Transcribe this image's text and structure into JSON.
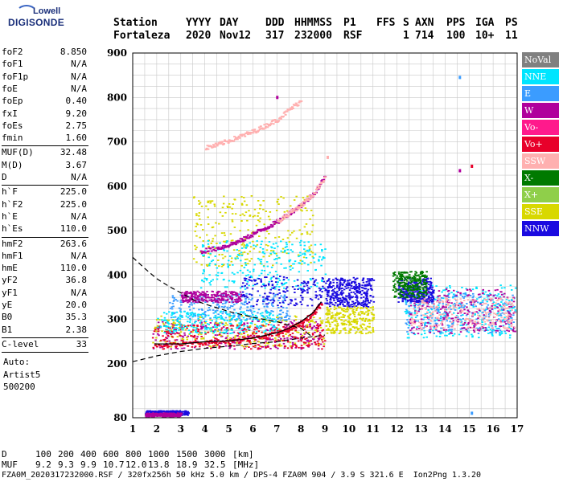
{
  "logo": {
    "line1": "Lowell",
    "line2": "DIGISONDE"
  },
  "header": {
    "labels": [
      "Station",
      "YYYY",
      "DAY",
      "DDD",
      "HHMMSS",
      "P1",
      "FFS",
      "S",
      "AXN",
      "PPS",
      "IGA",
      "PS"
    ],
    "values": [
      "Fortaleza",
      "2020",
      "Nov12",
      "317",
      "232000",
      "RSF",
      "",
      "1",
      "714",
      "100",
      "10+",
      "11"
    ]
  },
  "params_a": [
    {
      "k": "foF2",
      "v": "8.850"
    },
    {
      "k": "foF1",
      "v": "N/A"
    },
    {
      "k": "foF1p",
      "v": "N/A"
    },
    {
      "k": "foE",
      "v": "N/A"
    },
    {
      "k": "foEp",
      "v": "0.40"
    },
    {
      "k": "fxI",
      "v": "9.20"
    },
    {
      "k": "foEs",
      "v": "2.75"
    },
    {
      "k": "fmin",
      "v": "1.60"
    }
  ],
  "params_b": [
    {
      "k": "MUF(D)",
      "v": "32.48"
    },
    {
      "k": "M(D)",
      "v": "3.67"
    },
    {
      "k": "D",
      "v": "N/A"
    }
  ],
  "params_c": [
    {
      "k": "h`F",
      "v": "225.0"
    },
    {
      "k": "h`F2",
      "v": "225.0"
    },
    {
      "k": "h`E",
      "v": "N/A"
    },
    {
      "k": "h`Es",
      "v": "110.0"
    }
  ],
  "params_d": [
    {
      "k": "hmF2",
      "v": "263.6"
    },
    {
      "k": "hmF1",
      "v": "N/A"
    },
    {
      "k": "hmE",
      "v": "110.0"
    },
    {
      "k": "yF2",
      "v": "36.8"
    },
    {
      "k": "yF1",
      "v": "N/A"
    },
    {
      "k": "yE",
      "v": "20.0"
    },
    {
      "k": "B0",
      "v": "35.3"
    },
    {
      "k": "B1",
      "v": "2.38"
    }
  ],
  "clevel": {
    "k": "C-level",
    "v": "33"
  },
  "auto": [
    "Auto:",
    "Artist5",
    "500200"
  ],
  "legend": [
    {
      "label": "NoVal",
      "color": "#808080"
    },
    {
      "label": "NNE",
      "color": "#00e5ff"
    },
    {
      "label": "E",
      "color": "#3b9cff"
    },
    {
      "label": "W",
      "color": "#b0009c"
    },
    {
      "label": "Vo-",
      "color": "#ff1a8c"
    },
    {
      "label": "Vo+",
      "color": "#e8002a"
    },
    {
      "label": "SSW",
      "color": "#ffb0b0"
    },
    {
      "label": "X-",
      "color": "#007a00"
    },
    {
      "label": "X+",
      "color": "#8fcf4a"
    },
    {
      "label": "SSE",
      "color": "#d8d800"
    },
    {
      "label": "NNW",
      "color": "#1a0ae0"
    }
  ],
  "bottom": {
    "d_label": "D",
    "d_values": [
      "100",
      "200",
      "400",
      "600",
      "800",
      "1000",
      "1500",
      "3000",
      "[km]"
    ],
    "muf_label": "MUF",
    "muf_values": [
      "9.2",
      "9.3",
      "9.9",
      "10.7",
      "12.0",
      "13.8",
      "18.9",
      "32.5",
      "[MHz]"
    ],
    "footer": "FZA0M_2020317232000.RSF / 320fx256h 50 kHz 5.0 km / DPS-4 FZA0M 904 / 3.9 S 321.6 E  Ion2Png 1.3.20"
  },
  "chart_data": {
    "type": "scatter",
    "title": "",
    "xlabel": "",
    "ylabel": "",
    "xlim": [
      1,
      17
    ],
    "ylim": [
      80,
      900
    ],
    "x_ticks": [
      1,
      2,
      3,
      4,
      5,
      6,
      7,
      8,
      9,
      10,
      11,
      12,
      13,
      14,
      15,
      16,
      17
    ],
    "y_ticks": [
      80,
      200,
      300,
      400,
      500,
      600,
      700,
      800,
      900
    ],
    "grid": true,
    "profile_curve": [
      {
        "x": 1.0,
        "y": 440
      },
      {
        "x": 1.5,
        "y": 415
      },
      {
        "x": 2.0,
        "y": 392
      },
      {
        "x": 2.5,
        "y": 375
      },
      {
        "x": 3.0,
        "y": 360
      },
      {
        "x": 3.5,
        "y": 345
      },
      {
        "x": 4.0,
        "y": 335
      },
      {
        "x": 5.0,
        "y": 318
      },
      {
        "x": 6.0,
        "y": 305
      },
      {
        "x": 7.0,
        "y": 295
      },
      {
        "x": 8.0,
        "y": 280
      },
      {
        "x": 8.5,
        "y": 260
      }
    ],
    "lower_curve": [
      {
        "x": 1.0,
        "y": 205
      },
      {
        "x": 2.0,
        "y": 218
      },
      {
        "x": 3.0,
        "y": 228
      },
      {
        "x": 4.0,
        "y": 235
      },
      {
        "x": 5.0,
        "y": 240
      },
      {
        "x": 6.0,
        "y": 246
      },
      {
        "x": 7.0,
        "y": 250
      },
      {
        "x": 8.0,
        "y": 258
      },
      {
        "x": 9.0,
        "y": 265
      }
    ],
    "trace_o": [
      {
        "x": 1.9,
        "y": 245
      },
      {
        "x": 3.0,
        "y": 245
      },
      {
        "x": 4.0,
        "y": 250
      },
      {
        "x": 5.0,
        "y": 252
      },
      {
        "x": 6.0,
        "y": 258
      },
      {
        "x": 7.0,
        "y": 270
      },
      {
        "x": 7.5,
        "y": 280
      },
      {
        "x": 8.0,
        "y": 295
      },
      {
        "x": 8.5,
        "y": 315
      },
      {
        "x": 8.85,
        "y": 340
      }
    ],
    "echo_clusters": [
      {
        "name": "Es-trace",
        "color": "#1a0ae0",
        "x": [
          1.5,
          3.3
        ],
        "y": [
          87,
          97
        ]
      },
      {
        "name": "Es-trace-2",
        "color": "#b0009c",
        "x": [
          1.5,
          3.0
        ],
        "y": [
          84,
          92
        ]
      },
      {
        "name": "F-low-W",
        "color": "#b0009c",
        "x": [
          1.8,
          8.8
        ],
        "y": [
          235,
          300
        ]
      },
      {
        "name": "F-low-SSE",
        "color": "#d8d800",
        "x": [
          1.8,
          9.0
        ],
        "y": [
          240,
          310
        ]
      },
      {
        "name": "F-low-Vo",
        "color": "#e8002a",
        "x": [
          1.8,
          9.0
        ],
        "y": [
          235,
          290
        ]
      },
      {
        "name": "F-mid-E",
        "color": "#3b9cff",
        "x": [
          2.5,
          7.5
        ],
        "y": [
          300,
          360
        ]
      },
      {
        "name": "F-mid-NNE",
        "color": "#00e5ff",
        "x": [
          2.0,
          7.0
        ],
        "y": [
          270,
          320
        ]
      },
      {
        "name": "high-W",
        "color": "#b0009c",
        "x": [
          3.0,
          5.5
        ],
        "y": [
          340,
          365
        ]
      },
      {
        "name": "spread-F",
        "color": "#00e5ff",
        "x": [
          12.3,
          16.9
        ],
        "y": [
          260,
          380
        ]
      },
      {
        "name": "spread-F-2",
        "color": "#3b9cff",
        "x": [
          12.3,
          16.9
        ],
        "y": [
          270,
          360
        ]
      },
      {
        "name": "spread-F-3",
        "color": "#b0009c",
        "x": [
          12.5,
          16.9
        ],
        "y": [
          270,
          370
        ]
      },
      {
        "name": "spread-F-4",
        "color": "#ffb0b0",
        "x": [
          12.5,
          16.9
        ],
        "y": [
          280,
          350
        ]
      },
      {
        "name": "blue-patch",
        "color": "#1a0ae0",
        "x": [
          9.0,
          10.9
        ],
        "y": [
          330,
          395
        ]
      },
      {
        "name": "blue-patch-2",
        "color": "#1a0ae0",
        "x": [
          12.0,
          13.5
        ],
        "y": [
          340,
          395
        ]
      },
      {
        "name": "green-patch",
        "color": "#007a00",
        "x": [
          11.8,
          13.2
        ],
        "y": [
          350,
          410
        ]
      },
      {
        "name": "yellow-band",
        "color": "#d8d800",
        "x": [
          9.0,
          11.0
        ],
        "y": [
          270,
          330
        ]
      },
      {
        "name": "sse-upper",
        "color": "#d8d800",
        "x": [
          3.5,
          8.5
        ],
        "y": [
          420,
          580
        ]
      },
      {
        "name": "nne-upper",
        "color": "#00e5ff",
        "x": [
          3.8,
          9.0
        ],
        "y": [
          370,
          480
        ]
      },
      {
        "name": "nnw-sparse",
        "color": "#1a0ae0",
        "x": [
          5.5,
          11.0
        ],
        "y": [
          330,
          400
        ]
      }
    ],
    "multihop_2F": [
      {
        "x": 3.8,
        "y": 455
      },
      {
        "x": 4.5,
        "y": 462
      },
      {
        "x": 5.0,
        "y": 470
      },
      {
        "x": 5.5,
        "y": 480
      },
      {
        "x": 6.0,
        "y": 495
      },
      {
        "x": 6.5,
        "y": 508
      },
      {
        "x": 7.0,
        "y": 522
      },
      {
        "x": 7.5,
        "y": 542
      },
      {
        "x": 8.0,
        "y": 560
      },
      {
        "x": 8.5,
        "y": 585
      },
      {
        "x": 9.0,
        "y": 625
      }
    ],
    "multihop_3F": [
      {
        "x": 4.0,
        "y": 688
      },
      {
        "x": 4.5,
        "y": 695
      },
      {
        "x": 5.0,
        "y": 705
      },
      {
        "x": 5.5,
        "y": 715
      },
      {
        "x": 6.0,
        "y": 725
      },
      {
        "x": 6.5,
        "y": 738
      },
      {
        "x": 7.0,
        "y": 752
      },
      {
        "x": 7.5,
        "y": 775
      },
      {
        "x": 8.0,
        "y": 795
      }
    ],
    "isolated_points": [
      {
        "x": 14.6,
        "y": 845,
        "color": "#3b9cff"
      },
      {
        "x": 14.6,
        "y": 635,
        "color": "#b0009c"
      },
      {
        "x": 15.1,
        "y": 645,
        "color": "#e8002a"
      },
      {
        "x": 15.1,
        "y": 90,
        "color": "#3b9cff"
      },
      {
        "x": 9.1,
        "y": 665,
        "color": "#ffb0b0"
      },
      {
        "x": 7.0,
        "y": 800,
        "color": "#b0009c"
      }
    ]
  }
}
